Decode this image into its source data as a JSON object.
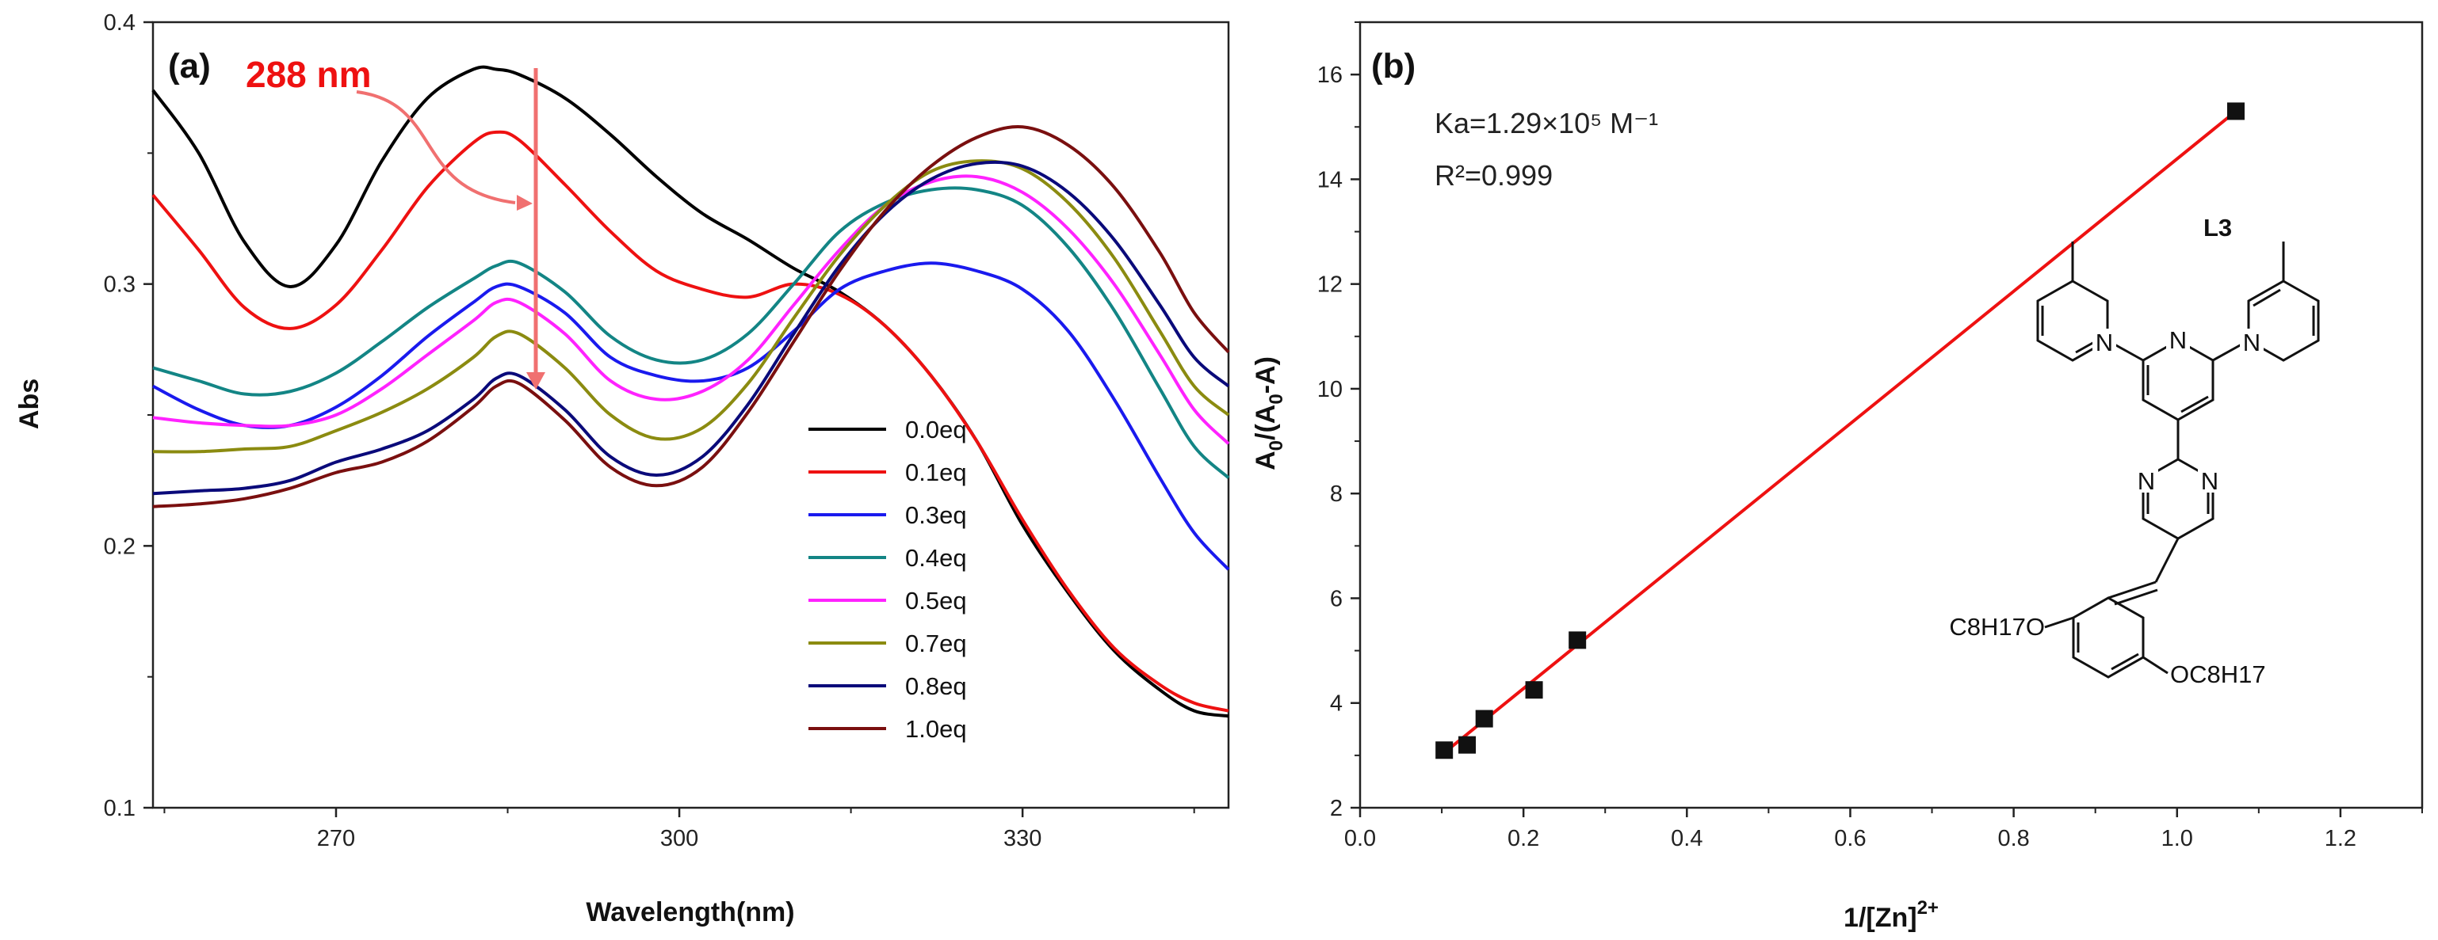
{
  "chart_data": [
    {
      "type": "line",
      "panel": "(a)",
      "xlabel": "Wavelength(nm)",
      "ylabel": "Abs",
      "xlim": [
        254,
        348
      ],
      "ylim": [
        0.1,
        0.4
      ],
      "x_ticks": [
        "270",
        "300",
        "330"
      ],
      "y_ticks": [
        "0.1",
        "0.2",
        "0.3",
        "0.4"
      ],
      "legend_position": "bottom-center",
      "annotation": {
        "text": "288 nm",
        "arrow": "downward at ~284 nm"
      },
      "series": [
        {
          "name": "0.0eq",
          "color": "#000000",
          "x": [
            254,
            258,
            262,
            266,
            270,
            274,
            278,
            282,
            284,
            286,
            290,
            294,
            298,
            302,
            306,
            310,
            314,
            318,
            322,
            326,
            330,
            334,
            338,
            342,
            345,
            348
          ],
          "y": [
            0.374,
            0.35,
            0.316,
            0.299,
            0.315,
            0.347,
            0.371,
            0.382,
            0.382,
            0.38,
            0.371,
            0.357,
            0.341,
            0.327,
            0.317,
            0.306,
            0.297,
            0.284,
            0.265,
            0.24,
            0.208,
            0.182,
            0.16,
            0.145,
            0.137,
            0.135
          ]
        },
        {
          "name": "0.1eq",
          "color": "#ee1111",
          "x": [
            254,
            258,
            262,
            266,
            270,
            274,
            278,
            282,
            284,
            286,
            290,
            294,
            298,
            302,
            306,
            310,
            314,
            318,
            322,
            326,
            330,
            334,
            338,
            342,
            345,
            348
          ],
          "y": [
            0.334,
            0.313,
            0.291,
            0.283,
            0.292,
            0.313,
            0.337,
            0.354,
            0.358,
            0.355,
            0.338,
            0.32,
            0.305,
            0.298,
            0.295,
            0.3,
            0.296,
            0.284,
            0.265,
            0.24,
            0.21,
            0.183,
            0.161,
            0.147,
            0.14,
            0.137
          ]
        },
        {
          "name": "0.3eq",
          "color": "#1a1aee",
          "x": [
            254,
            258,
            262,
            266,
            270,
            274,
            278,
            282,
            284,
            286,
            290,
            294,
            298,
            302,
            306,
            310,
            314,
            318,
            322,
            326,
            330,
            334,
            338,
            342,
            345,
            348
          ],
          "y": [
            0.261,
            0.252,
            0.246,
            0.246,
            0.253,
            0.265,
            0.28,
            0.293,
            0.299,
            0.299,
            0.289,
            0.272,
            0.265,
            0.263,
            0.268,
            0.282,
            0.298,
            0.305,
            0.308,
            0.305,
            0.298,
            0.282,
            0.256,
            0.226,
            0.205,
            0.191
          ]
        },
        {
          "name": "0.4eq",
          "color": "#138585",
          "x": [
            254,
            258,
            262,
            266,
            270,
            274,
            278,
            282,
            284,
            286,
            290,
            294,
            298,
            302,
            306,
            310,
            314,
            318,
            322,
            326,
            330,
            334,
            338,
            342,
            345,
            348
          ],
          "y": [
            0.268,
            0.263,
            0.258,
            0.259,
            0.266,
            0.278,
            0.291,
            0.302,
            0.307,
            0.308,
            0.297,
            0.28,
            0.271,
            0.271,
            0.281,
            0.3,
            0.32,
            0.331,
            0.336,
            0.336,
            0.33,
            0.314,
            0.29,
            0.26,
            0.238,
            0.226
          ]
        },
        {
          "name": "0.5eq",
          "color": "#ff22ff",
          "x": [
            254,
            258,
            262,
            266,
            270,
            274,
            278,
            282,
            284,
            286,
            290,
            294,
            298,
            302,
            306,
            310,
            314,
            318,
            322,
            326,
            330,
            334,
            338,
            342,
            345,
            348
          ],
          "y": [
            0.249,
            0.247,
            0.246,
            0.246,
            0.25,
            0.26,
            0.273,
            0.286,
            0.293,
            0.293,
            0.281,
            0.263,
            0.256,
            0.259,
            0.271,
            0.292,
            0.313,
            0.33,
            0.339,
            0.341,
            0.335,
            0.321,
            0.3,
            0.273,
            0.252,
            0.239
          ]
        },
        {
          "name": "0.7eq",
          "color": "#8b8b10",
          "x": [
            254,
            258,
            262,
            266,
            270,
            274,
            278,
            282,
            284,
            286,
            290,
            294,
            298,
            302,
            306,
            310,
            314,
            318,
            322,
            326,
            330,
            334,
            338,
            342,
            345,
            348
          ],
          "y": [
            0.236,
            0.236,
            0.237,
            0.238,
            0.244,
            0.251,
            0.26,
            0.272,
            0.28,
            0.281,
            0.268,
            0.25,
            0.241,
            0.245,
            0.262,
            0.287,
            0.311,
            0.33,
            0.343,
            0.347,
            0.344,
            0.331,
            0.31,
            0.282,
            0.261,
            0.25
          ]
        },
        {
          "name": "0.8eq",
          "color": "#0a0a7a",
          "x": [
            254,
            258,
            262,
            266,
            270,
            274,
            278,
            282,
            284,
            286,
            290,
            294,
            298,
            302,
            306,
            310,
            314,
            318,
            322,
            326,
            330,
            334,
            338,
            342,
            345,
            348
          ],
          "y": [
            0.22,
            0.221,
            0.222,
            0.225,
            0.232,
            0.237,
            0.244,
            0.256,
            0.264,
            0.265,
            0.252,
            0.234,
            0.227,
            0.234,
            0.254,
            0.281,
            0.307,
            0.327,
            0.34,
            0.346,
            0.345,
            0.335,
            0.317,
            0.292,
            0.272,
            0.261
          ]
        },
        {
          "name": "1.0eq",
          "color": "#7a0f0f",
          "x": [
            254,
            258,
            262,
            266,
            270,
            274,
            278,
            282,
            284,
            286,
            290,
            294,
            298,
            302,
            306,
            310,
            314,
            318,
            322,
            326,
            330,
            334,
            338,
            342,
            345,
            348
          ],
          "y": [
            0.215,
            0.216,
            0.218,
            0.222,
            0.228,
            0.232,
            0.24,
            0.253,
            0.261,
            0.262,
            0.248,
            0.23,
            0.223,
            0.23,
            0.251,
            0.278,
            0.305,
            0.328,
            0.345,
            0.356,
            0.36,
            0.353,
            0.337,
            0.312,
            0.289,
            0.274
          ]
        }
      ]
    },
    {
      "type": "scatter",
      "panel": "(b)",
      "xlabel": "1/[Zn]2+",
      "ylabel": "A0/(A0-A)",
      "xlim": [
        0.0,
        1.3
      ],
      "ylim": [
        2,
        17
      ],
      "x_ticks": [
        "0.0",
        "0.2",
        "0.4",
        "0.6",
        "0.8",
        "1.0",
        "1.2"
      ],
      "y_ticks": [
        "2",
        "4",
        "6",
        "8",
        "10",
        "12",
        "14",
        "16"
      ],
      "points": {
        "x": [
          0.103,
          0.131,
          0.152,
          0.213,
          0.266,
          1.072
        ],
        "y": [
          3.1,
          3.2,
          3.7,
          4.25,
          5.2,
          15.3
        ]
      },
      "fit": {
        "x": [
          0.103,
          1.072
        ],
        "y": [
          3.05,
          15.3
        ],
        "color": "#ee1111"
      },
      "annotations": {
        "ka": "Ka=1.29×10⁵ M⁻¹",
        "r2": "R²=0.999"
      }
    }
  ],
  "structure": {
    "name": "L3",
    "substituent_top": "C8H17O",
    "substituent_bottom": "OC8H17",
    "nitrogen": "N"
  }
}
